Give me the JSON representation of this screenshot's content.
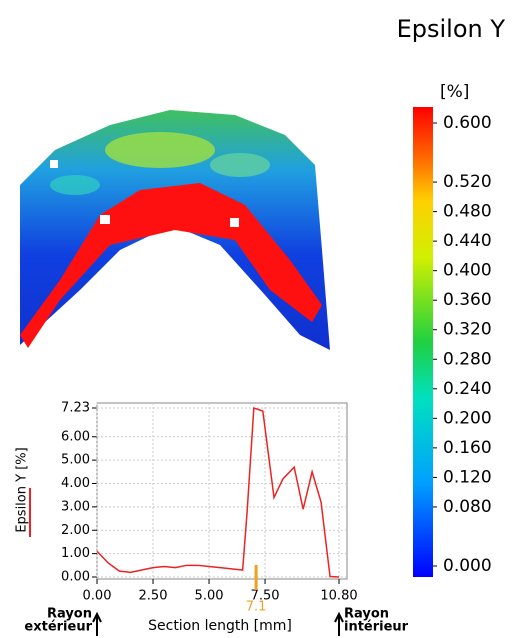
{
  "title": "Epsilon Y",
  "colorbar": {
    "unit": "[%]",
    "lim": [
      0,
      0.6
    ],
    "ticks": [
      {
        "value": 0.6,
        "label": "0.600"
      },
      {
        "value": 0.52,
        "label": "0.520"
      },
      {
        "value": 0.48,
        "label": "0.480"
      },
      {
        "value": 0.44,
        "label": "0.440"
      },
      {
        "value": 0.4,
        "label": "0.400"
      },
      {
        "value": 0.36,
        "label": "0.360"
      },
      {
        "value": 0.32,
        "label": "0.320"
      },
      {
        "value": 0.28,
        "label": "0.280"
      },
      {
        "value": 0.24,
        "label": "0.240"
      },
      {
        "value": 0.2,
        "label": "0.200"
      },
      {
        "value": 0.16,
        "label": "0.160"
      },
      {
        "value": 0.12,
        "label": "0.120"
      },
      {
        "value": 0.08,
        "label": "0.080"
      },
      {
        "value": 0,
        "label": "0.000"
      }
    ]
  },
  "chart_data": {
    "type": "line",
    "y_label": "Epsilon Y [%]",
    "x_label": "Section length [mm]",
    "color": "#ee2222",
    "x": [
      0,
      0.5,
      1,
      1.5,
      2,
      2.5,
      3,
      3.5,
      4,
      4.5,
      5,
      5.5,
      6,
      6.5,
      6.7,
      7.0,
      7.4,
      7.9,
      8.3,
      8.8,
      9.2,
      9.6,
      10.0,
      10.4,
      10.8
    ],
    "values": [
      1.1,
      0.6,
      0.25,
      0.2,
      0.3,
      0.4,
      0.45,
      0.4,
      0.5,
      0.5,
      0.45,
      0.4,
      0.35,
      0.3,
      2.8,
      7.23,
      7.1,
      3.4,
      4.2,
      4.7,
      2.9,
      4.5,
      3.2,
      0.02,
      0
    ],
    "xlim": [
      0,
      10.8
    ],
    "ylim": [
      0,
      7.23
    ],
    "xticks": [
      {
        "value": 0,
        "label": "0.00"
      },
      {
        "value": 2.5,
        "label": "2.50"
      },
      {
        "value": 5,
        "label": "5.00"
      },
      {
        "value": 7.5,
        "label": "7.50"
      },
      {
        "value": 10.8,
        "label": "10.80"
      }
    ],
    "yticks": [
      {
        "value": 0,
        "label": "0.00"
      },
      {
        "value": 1,
        "label": "1.00"
      },
      {
        "value": 2,
        "label": "2.00"
      },
      {
        "value": 3,
        "label": "3.00"
      },
      {
        "value": 4,
        "label": "4.00"
      },
      {
        "value": 5,
        "label": "5.00"
      },
      {
        "value": 6,
        "label": "6.00"
      },
      7.23
    ],
    "grid": true,
    "marker": {
      "value": 7.1,
      "color": "#f0a020"
    },
    "left_label": [
      "Rayon",
      "extérieur"
    ],
    "right_label": [
      "Rayon",
      "intérieur"
    ]
  }
}
